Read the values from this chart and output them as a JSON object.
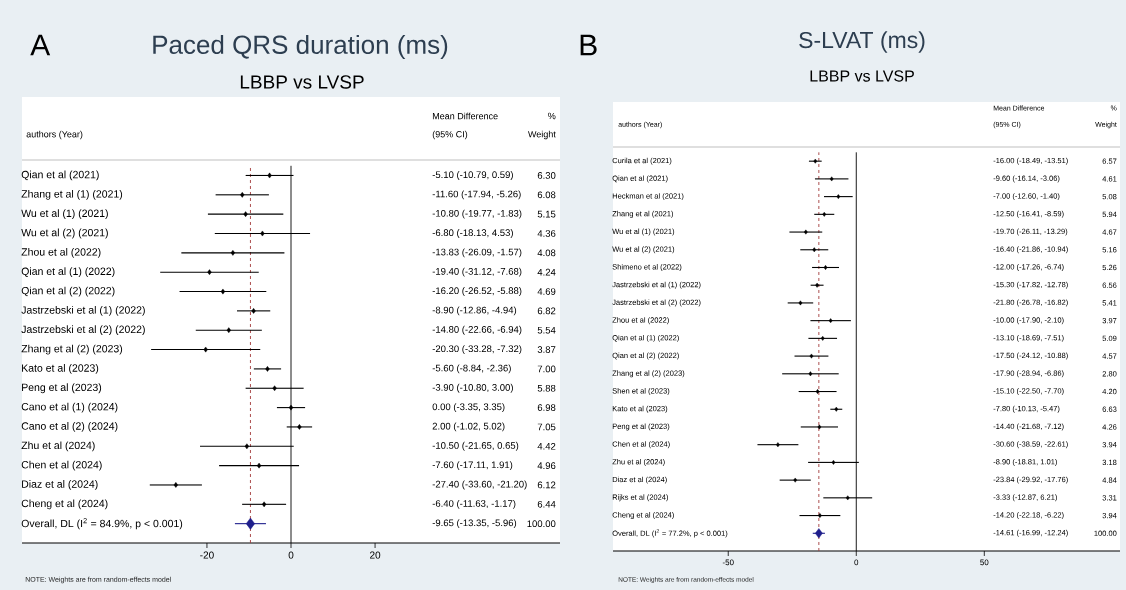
{
  "chart_data": [
    {
      "type": "scatter",
      "orientation": "horizontal",
      "marker": "diamond",
      "title": "Paced QRS duration (ms)",
      "subtitle": "LBBP vs LVSP",
      "categories": [
        "Qian et al (2021)",
        "Zhang et al (1) (2021)",
        "Wu et al (1) (2021)",
        "Wu et al (2) (2021)",
        "Zhou et al (2022)",
        "Qian et al (1) (2022)",
        "Qian et al (2) (2022)",
        "Jastrzebski et al (1) (2022)",
        "Jastrzebski et al (2) (2022)",
        "Zhang et al (2) (2023)",
        "Kato et al (2023)",
        "Peng et al (2023)",
        "Cano et al (1) (2024)",
        "Cano et al (2) (2024)",
        "Zhu et al  (2024)",
        "Chen et al  (2024)",
        "Diaz et al (2024)",
        "Cheng et al (2024)",
        "Overall, DL (I$^{2}$ = 84.9%, p < 0.001)"
      ],
      "series": [
        {
          "color": "#000000",
          "values": [
            -5.1,
            -11.6,
            -10.8,
            -6.8,
            -13.83,
            -19.4,
            -16.2,
            -8.9,
            -14.8,
            -20.3,
            -5.6,
            -3.9,
            0.0,
            2.0,
            -10.5,
            -7.6,
            -27.4,
            -6.4,
            null
          ],
          "errors": [
            [
              -10.79,
              0.59
            ],
            [
              -17.94,
              -5.26
            ],
            [
              -19.77,
              -1.83
            ],
            [
              -18.13,
              4.53
            ],
            [
              -26.09,
              -1.57
            ],
            [
              -31.12,
              -7.68
            ],
            [
              -26.52,
              -5.88
            ],
            [
              -12.86,
              -4.94
            ],
            [
              -22.66,
              -6.94
            ],
            [
              -33.28,
              -7.32
            ],
            [
              -8.84,
              -2.36
            ],
            [
              -10.8,
              3.0
            ],
            [
              -3.35,
              3.35
            ],
            [
              -1.02,
              5.02
            ],
            [
              -21.65,
              0.65
            ],
            [
              -17.11,
              1.91
            ],
            [
              -33.6,
              -21.2
            ],
            [
              -11.63,
              -1.17
            ],
            null
          ]
        },
        {
          "color": "#1f1f8c",
          "values": [
            null,
            null,
            null,
            null,
            null,
            null,
            null,
            null,
            null,
            null,
            null,
            null,
            null,
            null,
            null,
            null,
            null,
            null,
            -9.65
          ],
          "errors": [
            null,
            null,
            null,
            null,
            null,
            null,
            null,
            null,
            null,
            null,
            null,
            null,
            null,
            null,
            null,
            null,
            null,
            null,
            [
              -13.35,
              -5.96
            ]
          ]
        }
      ],
      "xlim": [
        -64,
        64
      ],
      "xticks": [
        -20,
        0,
        20
      ],
      "ref_lines": [
        {
          "axis": "x",
          "value": 0,
          "color": "#000000",
          "line_style": "solid"
        },
        {
          "axis": "x",
          "value": -9.65,
          "color": "#a33a3a",
          "line_style": "dashed"
        }
      ],
      "annotations": [
        "A",
        "authors (Year)",
        "Mean Difference",
        "(95% CI)",
        "%",
        "Weight",
        "NOTE: Weights are from random-effects model",
        "-5.10 (-10.79, 0.59)",
        "-11.60 (-17.94, -5.26)",
        "-10.80 (-19.77, -1.83)",
        "-6.80 (-18.13, 4.53)",
        "-13.83 (-26.09, -1.57)",
        "-19.40 (-31.12, -7.68)",
        "-16.20 (-26.52, -5.88)",
        "-8.90 (-12.86, -4.94)",
        "-14.80 (-22.66, -6.94)",
        "-20.30 (-33.28, -7.32)",
        "-5.60 (-8.84, -2.36)",
        "-3.90 (-10.80, 3.00)",
        "0.00 (-3.35, 3.35)",
        "2.00 (-1.02, 5.02)",
        "-10.50 (-21.65, 0.65)",
        "-7.60 (-17.11, 1.91)",
        "-27.40 (-33.60, -21.20)",
        "-6.40 (-11.63, -1.17)",
        "-9.65 (-13.35, -5.96)",
        "6.30",
        "6.08",
        "5.15",
        "4.36",
        "4.08",
        "4.24",
        "4.69",
        "6.82",
        "5.54",
        "3.87",
        "7.00",
        "5.88",
        "6.98",
        "7.05",
        "4.42",
        "4.96",
        "6.12",
        "6.44",
        "100.00"
      ]
    },
    {
      "type": "scatter",
      "orientation": "horizontal",
      "marker": "diamond",
      "title": "S-LVAT (ms)",
      "subtitle": "LBBP vs LVSP",
      "categories": [
        "Curila et al (2021)",
        "Qian et al (2021)",
        "Heckman et al (2021)",
        "Zhang et al (2021)",
        "Wu et al (1) (2021)",
        "Wu et al (2) (2021)",
        "Shimeno et al (2022)",
        "Jastrzebski et al (1) (2022)",
        "Jastrzebski et al (2) (2022)",
        "Zhou et al (2022)",
        "Qian et al (1) (2022)",
        "Qian et al (2) (2022)",
        "Zhang et al (2) (2023)",
        "Shen et al (2023)",
        "Kato et al (2023)",
        "Peng et al (2023)",
        "Chen et al  (2024)",
        "Zhu et al  (2024)",
        "Diaz et al (2024)",
        "Rijks et al (2024)",
        "Cheng et al (2024)",
        "Overall, DL (I$^{2}$ = 77.2%, p < 0.001)"
      ],
      "series": [
        {
          "color": "#000000",
          "values": [
            -16.0,
            -9.6,
            -7.0,
            -12.5,
            -19.7,
            -16.4,
            -12.0,
            -15.3,
            -21.8,
            -10.0,
            -13.1,
            -17.5,
            -17.9,
            -15.1,
            -7.8,
            -14.4,
            -30.6,
            -8.9,
            -23.84,
            -3.33,
            -14.2,
            null
          ],
          "errors": [
            [
              -18.49,
              -13.51
            ],
            [
              -16.14,
              -3.06
            ],
            [
              -12.6,
              -1.4
            ],
            [
              -16.41,
              -8.59
            ],
            [
              -26.11,
              -13.29
            ],
            [
              -21.86,
              -10.94
            ],
            [
              -17.26,
              -6.74
            ],
            [
              -17.82,
              -12.78
            ],
            [
              -26.78,
              -16.82
            ],
            [
              -17.9,
              -2.1
            ],
            [
              -18.69,
              -7.51
            ],
            [
              -24.12,
              -10.88
            ],
            [
              -28.94,
              -6.86
            ],
            [
              -22.5,
              -7.7
            ],
            [
              -10.13,
              -5.47
            ],
            [
              -21.68,
              -7.12
            ],
            [
              -38.59,
              -22.61
            ],
            [
              -18.81,
              1.01
            ],
            [
              -29.92,
              -17.76
            ],
            [
              -12.87,
              6.21
            ],
            [
              -22.18,
              -6.22
            ],
            null
          ]
        },
        {
          "color": "#1f1f8c",
          "values": [
            null,
            null,
            null,
            null,
            null,
            null,
            null,
            null,
            null,
            null,
            null,
            null,
            null,
            null,
            null,
            null,
            null,
            null,
            null,
            null,
            null,
            -14.61
          ],
          "errors": [
            null,
            null,
            null,
            null,
            null,
            null,
            null,
            null,
            null,
            null,
            null,
            null,
            null,
            null,
            null,
            null,
            null,
            null,
            null,
            null,
            null,
            [
              -16.99,
              -12.24
            ]
          ]
        }
      ],
      "xlim": [
        -95,
        103
      ],
      "xticks": [
        -50,
        0,
        50
      ],
      "ref_lines": [
        {
          "axis": "x",
          "value": 0,
          "color": "#000000",
          "line_style": "solid"
        },
        {
          "axis": "x",
          "value": -14.61,
          "color": "#a33a3a",
          "line_style": "dashed"
        }
      ],
      "annotations": [
        "B",
        "authors (Year)",
        "Mean Difference",
        "(95% CI)",
        "%",
        "Weight",
        "NOTE: Weights are from random-effects model",
        "-16.00 (-18.49, -13.51)",
        "-9.60 (-16.14, -3.06)",
        "-7.00 (-12.60, -1.40)",
        "-12.50 (-16.41, -8.59)",
        "-19.70 (-26.11, -13.29)",
        "-16.40 (-21.86, -10.94)",
        "-12.00 (-17.26, -6.74)",
        "-15.30 (-17.82, -12.78)",
        "-21.80 (-26.78, -16.82)",
        "-10.00 (-17.90, -2.10)",
        "-13.10 (-18.69, -7.51)",
        "-17.50 (-24.12, -10.88)",
        "-17.90 (-28.94, -6.86)",
        "-15.10 (-22.50, -7.70)",
        "-7.80 (-10.13, -5.47)",
        "-14.40 (-21.68, -7.12)",
        "-30.60 (-38.59, -22.61)",
        "-8.90 (-18.81, 1.01)",
        "-23.84 (-29.92, -17.76)",
        "-3.33 (-12.87, 6.21)",
        "-14.20 (-22.18, -6.22)",
        "-14.61 (-16.99, -12.24)",
        "6.57",
        "4.61",
        "5.08",
        "5.94",
        "4.67",
        "5.16",
        "5.26",
        "6.56",
        "5.41",
        "3.97",
        "5.09",
        "4.57",
        "2.80",
        "4.20",
        "6.63",
        "4.26",
        "3.94",
        "3.18",
        "4.84",
        "3.31",
        "3.94",
        "100.00"
      ]
    }
  ]
}
